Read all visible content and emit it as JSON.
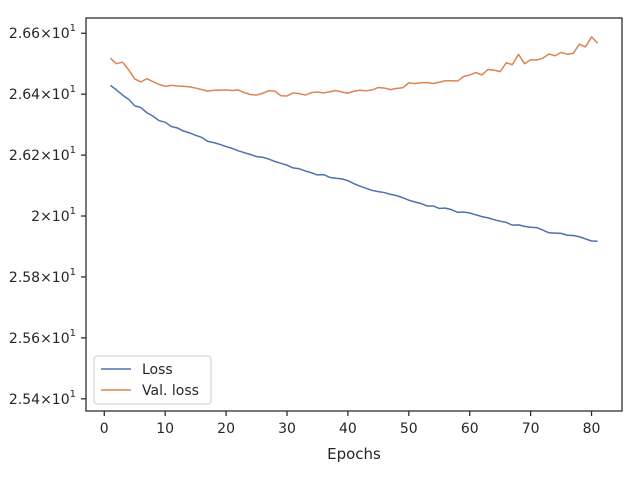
{
  "chart_data": {
    "type": "line",
    "title": "",
    "xlabel": "Epochs",
    "ylabel": "",
    "xlim": [
      -3,
      85
    ],
    "ylim": [
      25.36,
      26.65
    ],
    "grid": false,
    "legend_position": "bottom-left",
    "x_ticks": [
      {
        "value": 0,
        "label": "0"
      },
      {
        "value": 10,
        "label": "10"
      },
      {
        "value": 20,
        "label": "20"
      },
      {
        "value": 30,
        "label": "30"
      },
      {
        "value": 40,
        "label": "40"
      },
      {
        "value": 50,
        "label": "50"
      },
      {
        "value": 60,
        "label": "60"
      },
      {
        "value": 70,
        "label": "70"
      },
      {
        "value": 80,
        "label": "80"
      }
    ],
    "y_ticks": [
      {
        "value": 25.4,
        "mantissa": "2.54",
        "exponent": "1"
      },
      {
        "value": 25.6,
        "mantissa": "2.56",
        "exponent": "1"
      },
      {
        "value": 25.8,
        "mantissa": "2.58",
        "exponent": "1"
      },
      {
        "value": 26.0,
        "mantissa": "2",
        "exponent": "1"
      },
      {
        "value": 26.2,
        "mantissa": "2.62",
        "exponent": "1"
      },
      {
        "value": 26.4,
        "mantissa": "2.64",
        "exponent": "1"
      },
      {
        "value": 26.6,
        "mantissa": "2.66",
        "exponent": "1"
      }
    ],
    "x": [
      1,
      2,
      3,
      4,
      5,
      6,
      7,
      8,
      9,
      10,
      11,
      12,
      13,
      14,
      15,
      16,
      17,
      18,
      19,
      20,
      21,
      22,
      23,
      24,
      25,
      26,
      27,
      28,
      29,
      30,
      31,
      32,
      33,
      34,
      35,
      36,
      37,
      38,
      39,
      40,
      41,
      42,
      43,
      44,
      45,
      46,
      47,
      48,
      49,
      50,
      51,
      52,
      53,
      54,
      55,
      56,
      57,
      58,
      59,
      60,
      61,
      62,
      63,
      64,
      65,
      66,
      67,
      68,
      69,
      70,
      71,
      72,
      73,
      74,
      75,
      76,
      77,
      78,
      79,
      80,
      81
    ],
    "series": [
      {
        "name": "Loss",
        "color": "#4c72b0",
        "values": [
          26.429,
          26.414,
          26.397,
          26.383,
          26.362,
          26.356,
          26.339,
          26.328,
          26.313,
          26.308,
          26.294,
          26.289,
          26.279,
          26.273,
          26.265,
          26.258,
          26.245,
          26.241,
          26.235,
          26.228,
          26.222,
          26.214,
          26.208,
          26.202,
          26.195,
          26.193,
          26.187,
          26.179,
          26.173,
          26.167,
          26.158,
          26.155,
          26.148,
          26.142,
          26.135,
          26.136,
          26.127,
          26.124,
          26.122,
          26.116,
          26.106,
          26.098,
          26.091,
          26.084,
          26.08,
          26.077,
          26.071,
          26.067,
          26.06,
          26.052,
          26.046,
          26.041,
          26.033,
          26.033,
          26.025,
          26.026,
          26.021,
          26.012,
          26.013,
          26.01,
          26.004,
          25.998,
          25.994,
          25.988,
          25.983,
          25.979,
          25.97,
          25.971,
          25.966,
          25.963,
          25.962,
          25.954,
          25.945,
          25.944,
          25.943,
          25.937,
          25.936,
          25.932,
          25.925,
          25.918,
          25.917
        ]
      },
      {
        "name": "Val. loss",
        "color": "#dd8452",
        "values": [
          26.518,
          26.5,
          26.505,
          26.48,
          26.45,
          26.44,
          26.451,
          26.441,
          26.432,
          26.426,
          26.429,
          26.427,
          26.426,
          26.424,
          26.42,
          26.415,
          26.41,
          26.413,
          26.413,
          26.414,
          26.412,
          26.414,
          26.405,
          26.399,
          26.397,
          26.403,
          26.411,
          26.41,
          26.395,
          26.394,
          26.404,
          26.402,
          26.397,
          26.405,
          26.407,
          26.404,
          26.408,
          26.412,
          26.407,
          26.403,
          26.41,
          26.413,
          26.411,
          26.414,
          26.422,
          26.42,
          26.415,
          26.419,
          26.421,
          26.437,
          26.435,
          26.437,
          26.438,
          26.435,
          26.439,
          26.444,
          26.444,
          26.443,
          26.458,
          26.463,
          26.471,
          26.463,
          26.481,
          26.479,
          26.474,
          26.503,
          26.497,
          26.531,
          26.5,
          26.513,
          26.512,
          26.518,
          26.532,
          26.526,
          26.537,
          26.531,
          26.534,
          26.564,
          26.555,
          26.588,
          26.567
        ]
      }
    ]
  }
}
